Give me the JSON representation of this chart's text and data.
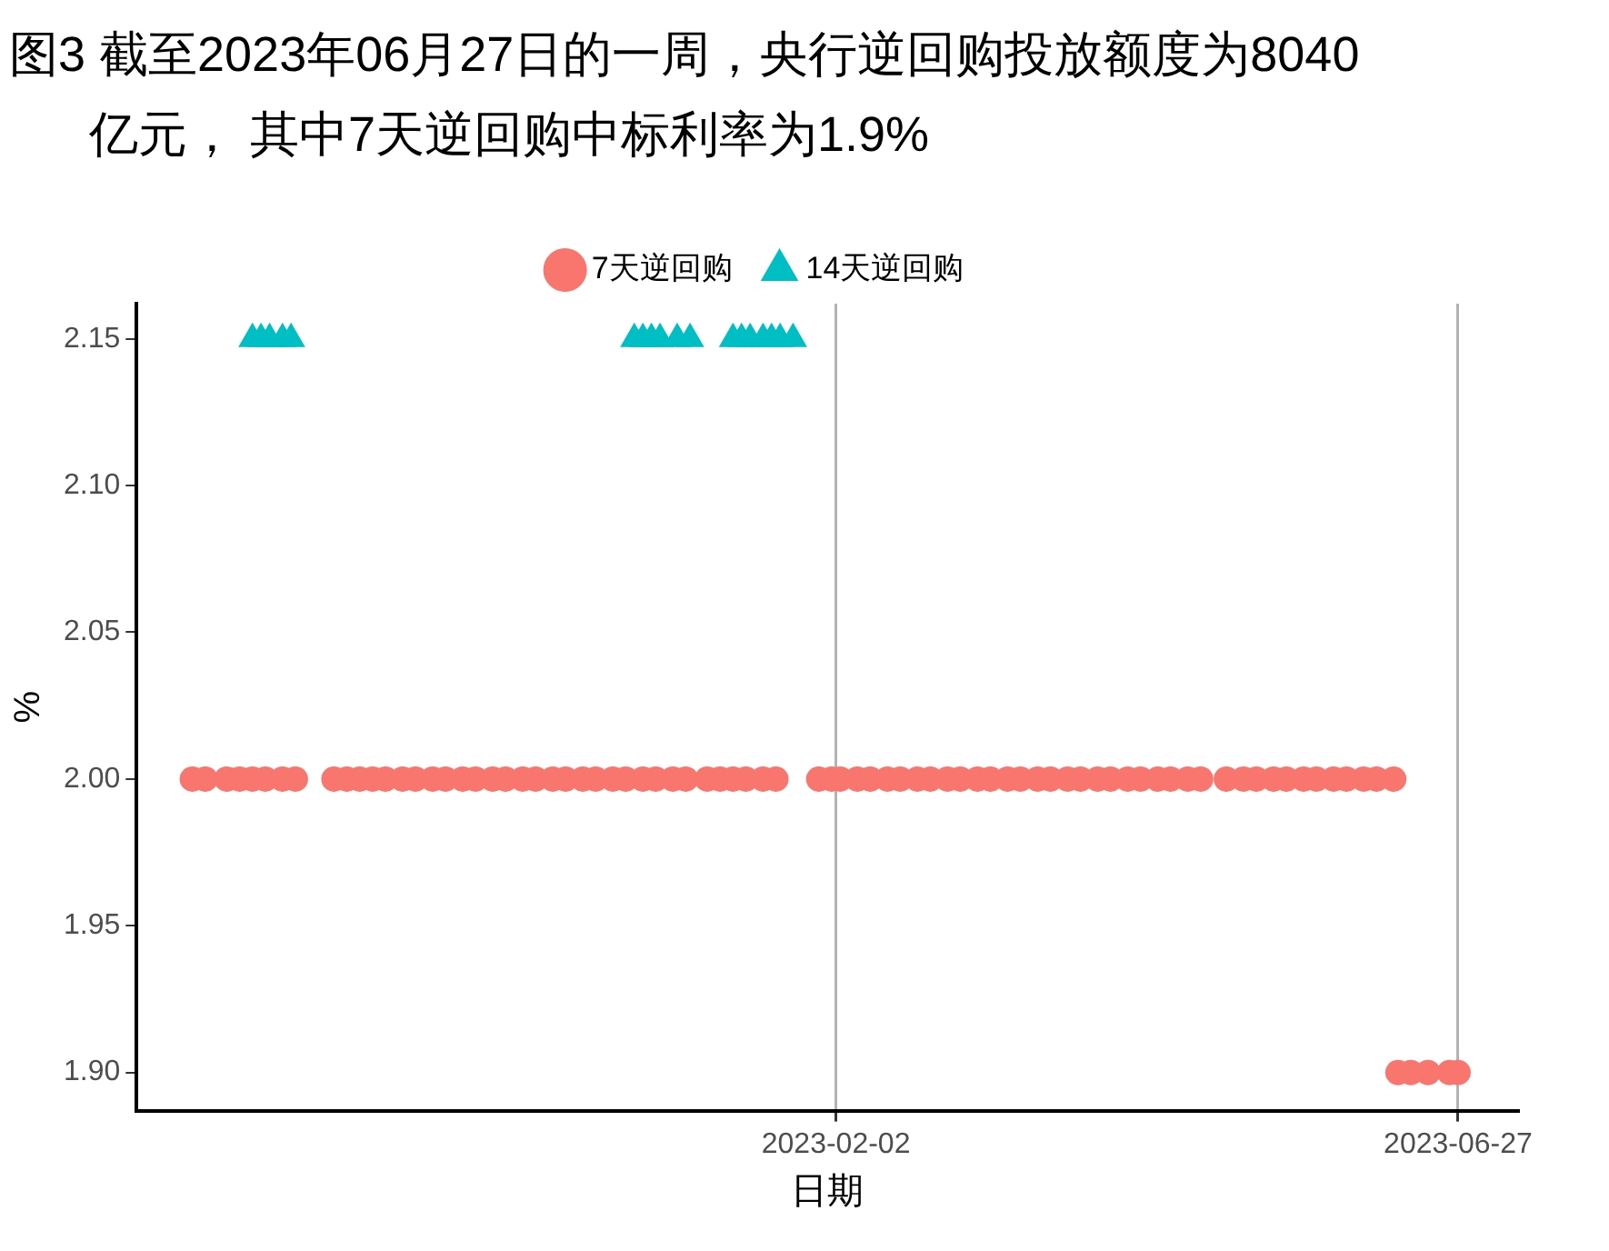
{
  "chart_data": {
    "type": "scatter",
    "title": "图3  截至2023年06月27日的一周，央行逆回购投放额度为8040亿元， 其中7天逆回购中标利率为1.9%",
    "xlabel": "日期",
    "ylabel": "%",
    "series": [
      {
        "name": "7天逆回购",
        "color": "#f8766d",
        "marker": "circle",
        "x": [
          "2022-09-05",
          "2022-09-08",
          "2022-09-13",
          "2022-09-16",
          "2022-09-19",
          "2022-09-22",
          "2022-09-26",
          "2022-09-29",
          "2022-10-08",
          "2022-10-11",
          "2022-10-14",
          "2022-10-17",
          "2022-10-20",
          "2022-10-24",
          "2022-10-27",
          "2022-10-31",
          "2022-11-03",
          "2022-11-07",
          "2022-11-10",
          "2022-11-14",
          "2022-11-17",
          "2022-11-21",
          "2022-11-24",
          "2022-11-28",
          "2022-12-01",
          "2022-12-05",
          "2022-12-08",
          "2022-12-12",
          "2022-12-15",
          "2022-12-19",
          "2022-12-22",
          "2022-12-26",
          "2022-12-29",
          "2023-01-03",
          "2023-01-06",
          "2023-01-09",
          "2023-01-12",
          "2023-01-16",
          "2023-01-19",
          "2023-01-29",
          "2023-02-01",
          "2023-02-03",
          "2023-02-07",
          "2023-02-10",
          "2023-02-14",
          "2023-02-17",
          "2023-02-21",
          "2023-02-24",
          "2023-02-28",
          "2023-03-03",
          "2023-03-07",
          "2023-03-10",
          "2023-03-14",
          "2023-03-17",
          "2023-03-21",
          "2023-03-24",
          "2023-03-28",
          "2023-03-31",
          "2023-04-04",
          "2023-04-07",
          "2023-04-11",
          "2023-04-14",
          "2023-04-18",
          "2023-04-21",
          "2023-04-25",
          "2023-04-28",
          "2023-05-04",
          "2023-05-08",
          "2023-05-11",
          "2023-05-15",
          "2023-05-18",
          "2023-05-22",
          "2023-05-25",
          "2023-05-29",
          "2023-06-01",
          "2023-06-05",
          "2023-06-08",
          "2023-06-12",
          "2023-06-13",
          "2023-06-16",
          "2023-06-20",
          "2023-06-25",
          "2023-06-27"
        ],
        "values": [
          2,
          2,
          2,
          2,
          2,
          2,
          2,
          2,
          2,
          2,
          2,
          2,
          2,
          2,
          2,
          2,
          2,
          2,
          2,
          2,
          2,
          2,
          2,
          2,
          2,
          2,
          2,
          2,
          2,
          2,
          2,
          2,
          2,
          2,
          2,
          2,
          2,
          2,
          2,
          2,
          2,
          2,
          2,
          2,
          2,
          2,
          2,
          2,
          2,
          2,
          2,
          2,
          2,
          2,
          2,
          2,
          2,
          2,
          2,
          2,
          2,
          2,
          2,
          2,
          2,
          2,
          2,
          2,
          2,
          2,
          2,
          2,
          2,
          2,
          2,
          2,
          2,
          2,
          1.9,
          1.9,
          1.9,
          1.9,
          1.9
        ]
      },
      {
        "name": "14天逆回购",
        "color": "#00bfc4",
        "marker": "triangle",
        "x": [
          "2022-09-19",
          "2022-09-21",
          "2022-09-23",
          "2022-09-26",
          "2022-09-28",
          "2022-12-17",
          "2022-12-19",
          "2022-12-21",
          "2022-12-23",
          "2022-12-27",
          "2022-12-30",
          "2023-01-09",
          "2023-01-11",
          "2023-01-13",
          "2023-01-16",
          "2023-01-18",
          "2023-01-20",
          "2023-01-23"
        ],
        "values": [
          2.15,
          2.15,
          2.15,
          2.15,
          2.15,
          2.15,
          2.15,
          2.15,
          2.15,
          2.15,
          2.15,
          2.15,
          2.15,
          2.15,
          2.15,
          2.15,
          2.15,
          2.15
        ]
      }
    ],
    "xlim": [
      "2022-08-23",
      "2023-07-11"
    ],
    "xticks": [
      "2023-02-02",
      "2023-06-27"
    ],
    "ylim": [
      1.887,
      2.162
    ],
    "yticks": [
      {
        "value": 1.9,
        "label": "1.90"
      },
      1.95,
      {
        "value": 2.0,
        "label": "2.00"
      },
      2.05,
      {
        "value": 2.1,
        "label": "2.10"
      },
      2.15
    ],
    "grid": "x",
    "legend": "top"
  }
}
